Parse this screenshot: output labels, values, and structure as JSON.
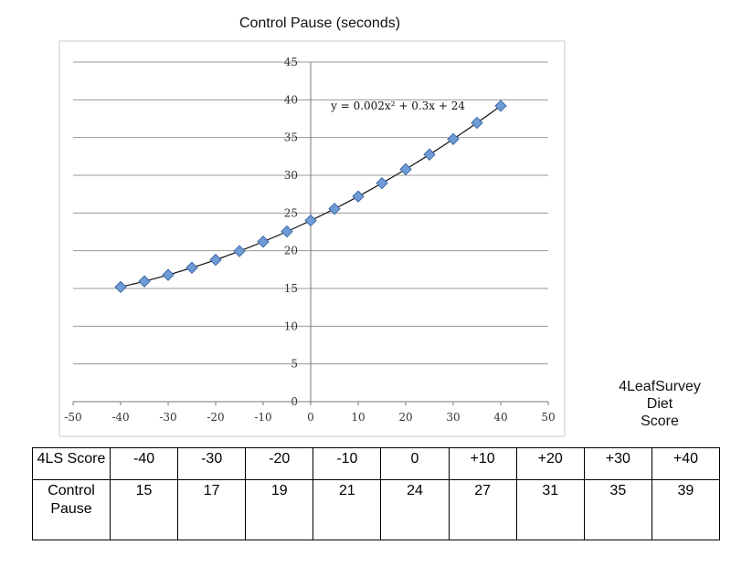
{
  "chart_data": {
    "type": "scatter",
    "title": "Control Pause (seconds)",
    "xlabel": [
      "4LeafSurvey",
      "Diet",
      "Score"
    ],
    "ylabel": "",
    "xlim": [
      -50,
      50
    ],
    "ylim": [
      0,
      45
    ],
    "x_ticks": [
      -50,
      -40,
      -30,
      -20,
      -10,
      0,
      10,
      20,
      30,
      40,
      50
    ],
    "y_ticks": [
      0,
      5,
      10,
      15,
      20,
      25,
      30,
      35,
      40,
      45
    ],
    "grid": "horizontal",
    "marker": "diamond",
    "colors": {
      "marker_fill": "#6f9bd6",
      "marker_stroke": "#3f6aa8",
      "grid": "#9a9a9a",
      "trendline": "#111111",
      "plot_border": "#c8c8c8"
    },
    "series": [
      {
        "x": [
          -40,
          -35,
          -30,
          -25,
          -20,
          -15,
          -10,
          -5,
          0,
          5,
          10,
          15,
          20,
          25,
          30,
          35,
          40
        ],
        "y": [
          15.2,
          15.95,
          16.8,
          17.75,
          18.8,
          19.95,
          21.2,
          22.55,
          24,
          25.55,
          27.2,
          28.95,
          30.8,
          32.75,
          34.8,
          36.95,
          39.2
        ]
      }
    ],
    "trendline": {
      "type": "polynomial",
      "a": 0.002,
      "b": 0.3,
      "c": 24,
      "equation_label": "y = 0.002x² + 0.3x + 24"
    }
  },
  "table": {
    "rows": [
      {
        "header": "4LS Score",
        "cells": [
          "-40",
          "-30",
          "-20",
          "-10",
          "0",
          "+10",
          "+20",
          "+30",
          "+40"
        ]
      },
      {
        "header": "Control Pause",
        "cells": [
          "15",
          "17",
          "19",
          "21",
          "24",
          "27",
          "31",
          "35",
          "39"
        ]
      }
    ]
  }
}
